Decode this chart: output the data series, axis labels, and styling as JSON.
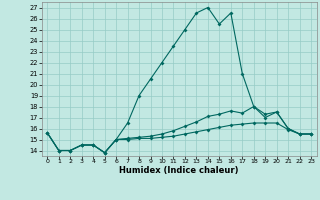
{
  "xlabel": "Humidex (Indice chaleur)",
  "bg_color": "#c2e8e2",
  "grid_color": "#96ccc6",
  "line_color": "#006860",
  "xlim": [
    -0.5,
    23.5
  ],
  "ylim": [
    13.5,
    27.5
  ],
  "yticks": [
    14,
    15,
    16,
    17,
    18,
    19,
    20,
    21,
    22,
    23,
    24,
    25,
    26,
    27
  ],
  "xticks": [
    0,
    1,
    2,
    3,
    4,
    5,
    6,
    7,
    8,
    9,
    10,
    11,
    12,
    13,
    14,
    15,
    16,
    17,
    18,
    19,
    20,
    21,
    22,
    23
  ],
  "line1_y": [
    15.6,
    14.0,
    14.0,
    14.5,
    14.5,
    13.8,
    15.0,
    16.5,
    19.0,
    20.5,
    22.0,
    23.5,
    25.0,
    26.5,
    27.0,
    25.5,
    26.5,
    21.0,
    18.0,
    17.0,
    17.5,
    16.0,
    15.5,
    15.5
  ],
  "line2_y": [
    15.6,
    14.0,
    14.0,
    14.5,
    14.5,
    13.8,
    15.0,
    15.1,
    15.2,
    15.3,
    15.5,
    15.8,
    16.2,
    16.6,
    17.1,
    17.3,
    17.6,
    17.4,
    18.0,
    17.3,
    17.5,
    16.0,
    15.5,
    15.5
  ],
  "line3_y": [
    15.6,
    14.0,
    14.0,
    14.5,
    14.5,
    13.8,
    15.0,
    15.0,
    15.1,
    15.1,
    15.2,
    15.3,
    15.5,
    15.7,
    15.9,
    16.1,
    16.3,
    16.4,
    16.5,
    16.5,
    16.5,
    15.9,
    15.5,
    15.5
  ]
}
